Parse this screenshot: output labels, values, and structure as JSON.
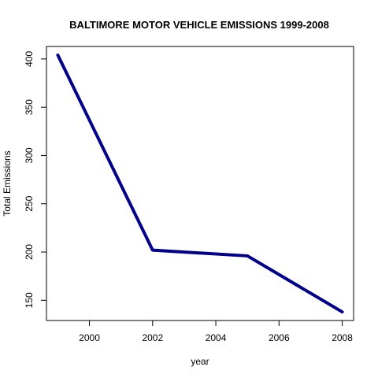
{
  "chart_data": {
    "type": "line",
    "title": "BALTIMORE MOTOR VEHICLE EMISSIONS 1999-2008",
    "xlabel": "year",
    "ylabel": "Total Emissions",
    "x": [
      1999,
      2002,
      2005,
      2008
    ],
    "y": [
      404,
      202,
      196,
      138
    ],
    "xlim": [
      1998.64,
      2008.36
    ],
    "ylim": [
      129.06,
      412.94
    ],
    "xticks": [
      2000,
      2002,
      2004,
      2006,
      2008
    ],
    "yticks": [
      150,
      200,
      250,
      300,
      350,
      400
    ],
    "line_color": "#00008B",
    "grid": false,
    "legend": "none"
  }
}
